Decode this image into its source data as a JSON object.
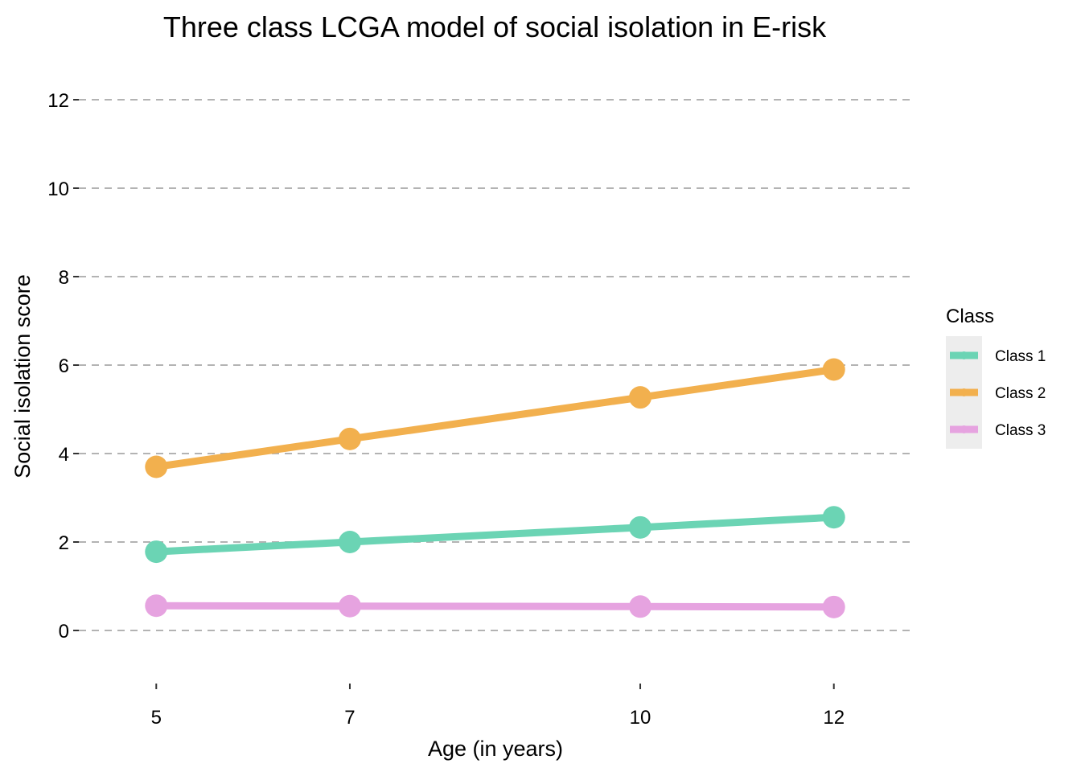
{
  "chart_data": {
    "type": "line",
    "title": "Three class LCGA model of social isolation in E-risk",
    "xlabel": "Age (in years)",
    "ylabel": "Social isolation score",
    "x": [
      5,
      7,
      10,
      12
    ],
    "xticks": [
      "5",
      "7",
      "10",
      "12"
    ],
    "yticks": [
      "0",
      "2",
      "4",
      "6",
      "8",
      "10",
      "12"
    ],
    "xlim": [
      4.2,
      12.8
    ],
    "ylim": [
      -1.2,
      12.8
    ],
    "grid": "horizontal dashed",
    "legend": {
      "title": "Class",
      "placement": "right"
    },
    "series": [
      {
        "name": "Class 1",
        "color": "#6bd4b4",
        "values": [
          1.78,
          2.0,
          2.33,
          2.56
        ]
      },
      {
        "name": "Class 2",
        "color": "#f2b04e",
        "values": [
          3.7,
          4.33,
          5.27,
          5.9
        ]
      },
      {
        "name": "Class 3",
        "color": "#e6a3e0",
        "values": [
          0.56,
          0.55,
          0.54,
          0.53
        ]
      }
    ]
  }
}
